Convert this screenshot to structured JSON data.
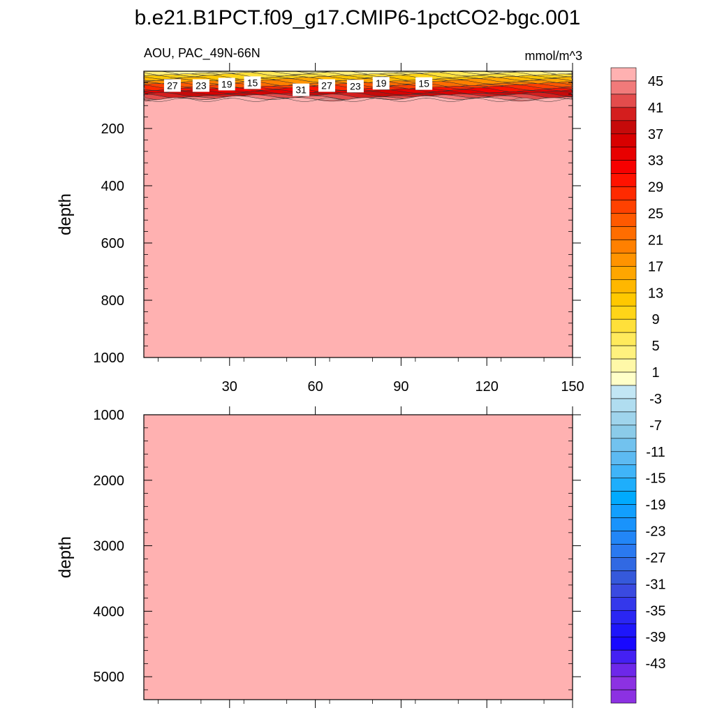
{
  "figure": {
    "title": "b.e21.B1PCT.f09_g17.CMIP6-1pctCO2-bgc.001"
  },
  "colors": {
    "deep_fill": "#ffb1b1",
    "axis": "#000000",
    "contour_line": "#333333",
    "label_box": "#ffffff"
  },
  "chart_data": [
    {
      "type": "heatmap",
      "panel": "upper",
      "title_left": "AOU, PAC_49N-66N",
      "title_right": "mmol/m^3",
      "xlabel": "",
      "ylabel": "depth",
      "xlim": [
        0,
        150
      ],
      "ylim": [
        1000,
        0
      ],
      "x_ticks": [
        30,
        60,
        90,
        120,
        150
      ],
      "y_ticks": [
        200,
        400,
        600,
        800,
        1000
      ],
      "surface_layer_bottom_depth": 100,
      "below_surface_value": "> 47",
      "contour_labels": [
        {
          "x": 10,
          "depth": 50,
          "label": "27"
        },
        {
          "x": 20,
          "depth": 50,
          "label": "23"
        },
        {
          "x": 29,
          "depth": 45,
          "label": "19"
        },
        {
          "x": 38,
          "depth": 40,
          "label": "15"
        },
        {
          "x": 55,
          "depth": 65,
          "label": "31"
        },
        {
          "x": 64,
          "depth": 50,
          "label": "27"
        },
        {
          "x": 74,
          "depth": 52,
          "label": "23"
        },
        {
          "x": 83,
          "depth": 42,
          "label": "19"
        },
        {
          "x": 98,
          "depth": 43,
          "label": "15"
        }
      ]
    },
    {
      "type": "heatmap",
      "panel": "lower",
      "xlabel": "",
      "ylabel": "depth",
      "xlim": [
        0,
        150
      ],
      "ylim": [
        5350,
        1000
      ],
      "x_ticks": [
        30,
        60,
        90,
        120,
        150
      ],
      "y_ticks": [
        1000,
        2000,
        3000,
        4000,
        5000
      ],
      "fill_value": "> 47"
    }
  ],
  "colorbar": {
    "levels": [
      -47,
      -45,
      -43,
      -41,
      -39,
      -37,
      -35,
      -33,
      -31,
      -29,
      -27,
      -25,
      -23,
      -21,
      -19,
      -17,
      -15,
      -13,
      -11,
      -9,
      -7,
      -5,
      -3,
      -1,
      1,
      3,
      5,
      7,
      9,
      11,
      13,
      15,
      17,
      19,
      21,
      23,
      25,
      27,
      29,
      31,
      33,
      35,
      37,
      39,
      41,
      43,
      45,
      47
    ],
    "labels": [
      "45",
      "41",
      "37",
      "33",
      "29",
      "25",
      "21",
      "17",
      "13",
      "9",
      "5",
      "1",
      "-3",
      "-7",
      "-11",
      "-15",
      "-19",
      "-23",
      "-27",
      "-31",
      "-35",
      "-39",
      "-43"
    ],
    "colors_top_to_bottom": [
      "#ffb1b1",
      "#f17a7a",
      "#e34c4c",
      "#d41e1e",
      "#c60a0a",
      "#d80000",
      "#e80000",
      "#f70000",
      "#ff1200",
      "#ff2a00",
      "#ff4100",
      "#ff5900",
      "#ff6d00",
      "#ff8000",
      "#ff9300",
      "#ffa600",
      "#ffb700",
      "#ffc800",
      "#ffd518",
      "#ffe03a",
      "#ffea5c",
      "#fff17e",
      "#fff8a8",
      "#ffffc8",
      "#c2e6f4",
      "#b0ddf0",
      "#9fd4ec",
      "#8bcbe9",
      "#72c2ee",
      "#5dbaf2",
      "#40b4f8",
      "#1eaefc",
      "#00aafe",
      "#129ffe",
      "#1993fc",
      "#2286f7",
      "#2a79f0",
      "#3169e3",
      "#3559db",
      "#3a4ae0",
      "#3438eb",
      "#2a26f3",
      "#1e16fa",
      "#1808ff",
      "#4420f3",
      "#6d28e9",
      "#8c31e2",
      "#8c31e2"
    ]
  }
}
